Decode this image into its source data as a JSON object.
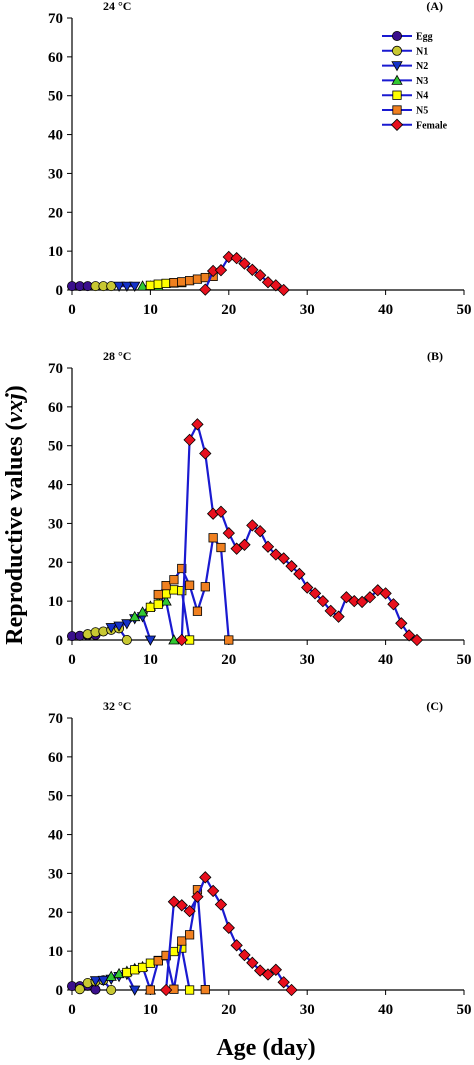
{
  "chart_data": {
    "type": "line",
    "ylabel": "Reproductive values (vxj)",
    "ylabel_main": "Reproductive values (",
    "ylabel_var": "vxj",
    "ylabel_close": ")",
    "xlabel": "Age (day)",
    "xlim": [
      0,
      50
    ],
    "ylim": [
      0,
      70
    ],
    "xticks": [
      0,
      10,
      20,
      30,
      40,
      50
    ],
    "yticks": [
      0,
      10,
      20,
      30,
      40,
      50,
      60,
      70
    ],
    "legend_position": "top-right",
    "series_styles": [
      {
        "name": "Egg",
        "marker": "circle",
        "fill": "#3a0f8c"
      },
      {
        "name": "N1",
        "marker": "circle",
        "fill": "#c8c832"
      },
      {
        "name": "N2",
        "marker": "triangle-down",
        "fill": "#1432c8"
      },
      {
        "name": "N3",
        "marker": "triangle-up",
        "fill": "#32c832"
      },
      {
        "name": "N4",
        "marker": "square",
        "fill": "#ffff00"
      },
      {
        "name": "N5",
        "marker": "square",
        "fill": "#f08020"
      },
      {
        "name": "Female",
        "marker": "diamond",
        "fill": "#e8101e"
      }
    ],
    "line_color": "#1a1ad0",
    "panels": [
      {
        "title": "24 °C",
        "label": "(A)",
        "series": [
          {
            "name": "Egg",
            "x": [
              0,
              1,
              2
            ],
            "y": [
              1,
              1,
              1
            ]
          },
          {
            "name": "N1",
            "x": [
              3,
              4,
              5
            ],
            "y": [
              1,
              1,
              1
            ]
          },
          {
            "name": "N2",
            "x": [
              6,
              7,
              8
            ],
            "y": [
              1,
              1,
              1
            ]
          },
          {
            "name": "N3",
            "x": [
              9,
              10,
              11
            ],
            "y": [
              1,
              1,
              1
            ]
          },
          {
            "name": "N4",
            "x": [
              10,
              11,
              12,
              13,
              14
            ],
            "y": [
              1.2,
              1.5,
              1.7,
              1.8,
              1.9
            ]
          },
          {
            "name": "N5",
            "x": [
              13,
              14,
              15,
              16,
              17,
              18
            ],
            "y": [
              1.9,
              2.1,
              2.4,
              2.8,
              3.2,
              3.5
            ]
          },
          {
            "name": "Female",
            "x": [
              17,
              18,
              19,
              20,
              21,
              22,
              23,
              24,
              25,
              26,
              27
            ],
            "y": [
              0.1,
              4.9,
              5.1,
              8.5,
              8.2,
              6.8,
              5.2,
              3.8,
              2,
              1.2,
              0
            ]
          }
        ]
      },
      {
        "title": "28 °C",
        "label": "(B)",
        "series": [
          {
            "name": "Egg",
            "x": [
              0,
              1,
              2,
              3
            ],
            "y": [
              1,
              1.1,
              1.2,
              1.3
            ]
          },
          {
            "name": "N1",
            "x": [
              2,
              3,
              4,
              5,
              6,
              7
            ],
            "y": [
              1.5,
              2,
              2.2,
              2.6,
              3,
              0
            ]
          },
          {
            "name": "N2",
            "x": [
              5,
              6,
              7,
              8,
              9,
              10
            ],
            "y": [
              3.2,
              3.6,
              4.2,
              5.5,
              6,
              0
            ]
          },
          {
            "name": "N3",
            "x": [
              8,
              9,
              10,
              11,
              12,
              13
            ],
            "y": [
              6,
              7.2,
              8.7,
              9.8,
              10,
              0
            ]
          },
          {
            "name": "N4",
            "x": [
              10,
              11,
              12,
              13,
              14,
              15
            ],
            "y": [
              8.4,
              9.2,
              11.9,
              12.9,
              12.7,
              0
            ]
          },
          {
            "name": "N5",
            "x": [
              11,
              12,
              13,
              14,
              15,
              16,
              17,
              18,
              19,
              20
            ],
            "y": [
              11.7,
              14,
              15.5,
              18.4,
              14.1,
              7.4,
              13.7,
              26.3,
              23.8,
              0
            ]
          },
          {
            "name": "Female",
            "x": [
              14,
              15,
              16,
              17,
              18,
              19,
              20,
              21,
              22,
              23,
              24,
              25,
              26,
              27,
              28,
              29,
              30,
              31,
              32,
              33,
              34,
              35,
              36,
              37,
              38,
              39,
              40,
              41,
              42,
              43,
              44
            ],
            "y": [
              0,
              51.5,
              55.5,
              48,
              32.5,
              33,
              27.5,
              23.5,
              24.5,
              29.5,
              28,
              24,
              22,
              21,
              19,
              17,
              13.5,
              12,
              10,
              7.5,
              6,
              11,
              10,
              9.8,
              11,
              12.8,
              12,
              9.2,
              4.3,
              1.2,
              0
            ]
          }
        ]
      },
      {
        "title": "32 °C",
        "label": "(C)",
        "series": [
          {
            "name": "Egg",
            "x": [
              0,
              1,
              2,
              3
            ],
            "y": [
              1,
              1,
              1.1,
              0.1
            ]
          },
          {
            "name": "N1",
            "x": [
              1,
              2,
              3,
              4,
              5
            ],
            "y": [
              0.2,
              1.8,
              2.2,
              2.5,
              0
            ]
          },
          {
            "name": "N2",
            "x": [
              3,
              4,
              5,
              6,
              7,
              8
            ],
            "y": [
              2.4,
              2.5,
              2.8,
              3.5,
              4,
              0
            ]
          },
          {
            "name": "N3",
            "x": [
              5,
              6,
              7,
              8,
              9,
              10
            ],
            "y": [
              3.5,
              4.2,
              4.8,
              5.5,
              6,
              0
            ]
          },
          {
            "name": "N4",
            "x": [
              7,
              8,
              9,
              10,
              11,
              12,
              13,
              14,
              15
            ],
            "y": [
              4.5,
              5.2,
              5.8,
              6.9,
              7.6,
              8.8,
              9.9,
              10.8,
              0
            ]
          },
          {
            "name": "N5",
            "x": [
              10,
              11,
              12,
              13,
              14,
              15,
              16,
              17
            ],
            "y": [
              0,
              7.5,
              8.9,
              0.2,
              12.6,
              14.2,
              25.8,
              0.1
            ]
          },
          {
            "name": "Female",
            "x": [
              12,
              13,
              14,
              15,
              16,
              17,
              18,
              19,
              20,
              21,
              22,
              23,
              24,
              25,
              26,
              27,
              28
            ],
            "y": [
              0,
              22.7,
              21.8,
              20.3,
              24,
              29,
              25.5,
              22,
              16,
              11.5,
              9,
              7,
              5,
              4,
              5.2,
              2,
              0
            ]
          }
        ]
      }
    ]
  }
}
